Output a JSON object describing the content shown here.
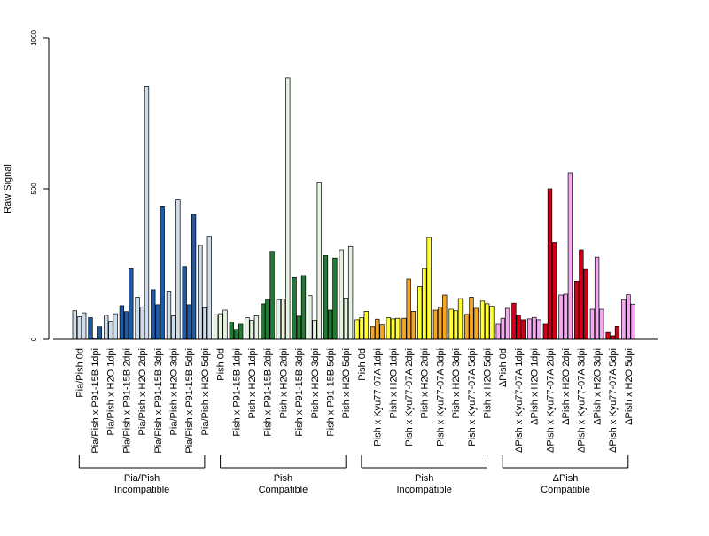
{
  "chart_data": {
    "type": "bar",
    "title": "",
    "xlabel": "",
    "ylabel": "Raw Signal",
    "ylim": [
      0,
      1000
    ],
    "yticks": [
      0,
      500,
      1000
    ],
    "grid": false,
    "legend": "none",
    "bars_per_category": 3,
    "categories": [
      {
        "label": "Pia/Pish 0d",
        "values": [
          95,
          75,
          88
        ],
        "color": "#cfdcea"
      },
      {
        "label": "Pia/Pish x P91-15B 1dpi",
        "values": [
          72,
          5,
          42
        ],
        "color": "#1f5aa6"
      },
      {
        "label": "Pia/Pish x H2O 1dpi",
        "values": [
          80,
          60,
          85
        ],
        "color": "#cfdcea"
      },
      {
        "label": "Pia/Pish x P91-15B 2dpi",
        "values": [
          112,
          92,
          235
        ],
        "color": "#1f5aa6"
      },
      {
        "label": "Pia/Pish x H2O 2dpi",
        "values": [
          140,
          108,
          840
        ],
        "color": "#cfdcea"
      },
      {
        "label": "Pia/Pish x P91-15B 3dpi",
        "values": [
          165,
          115,
          440
        ],
        "color": "#1f5aa6"
      },
      {
        "label": "Pia/Pish x H2O 3dpi",
        "values": [
          158,
          78,
          463
        ],
        "color": "#cfdcea"
      },
      {
        "label": "Pia/Pish x P91-15B 5dpi",
        "values": [
          242,
          115,
          415
        ],
        "color": "#1f5aa6"
      },
      {
        "label": "Pia/Pish x H2O 5dpi",
        "values": [
          312,
          105,
          342
        ],
        "color": "#cfdcea"
      },
      {
        "label": "Pish 0d",
        "values": [
          82,
          85,
          97
        ],
        "color": "#e6f3e1"
      },
      {
        "label": "Pish x P91-15B 1dpi",
        "values": [
          58,
          33,
          50
        ],
        "color": "#237a35"
      },
      {
        "label": "Pish x H2O 1dpi",
        "values": [
          72,
          63,
          78
        ],
        "color": "#e6f3e1"
      },
      {
        "label": "Pish x P91-15B 2dpi",
        "values": [
          118,
          133,
          292
        ],
        "color": "#237a35"
      },
      {
        "label": "Pish x H2O 2dpi",
        "values": [
          132,
          133,
          868
        ],
        "color": "#e6f3e1"
      },
      {
        "label": "Pish x P91-15B 3dpi",
        "values": [
          205,
          77,
          212
        ],
        "color": "#237a35"
      },
      {
        "label": "Pish x H2O 3dpi",
        "values": [
          145,
          63,
          522
        ],
        "color": "#e6f3e1"
      },
      {
        "label": "Pish x P91-15B 5dpi",
        "values": [
          278,
          97,
          270
        ],
        "color": "#237a35"
      },
      {
        "label": "Pish x H2O 5dpi",
        "values": [
          297,
          137,
          308
        ],
        "color": "#e6f3e1"
      },
      {
        "label": "Pish 0d",
        "values": [
          65,
          72,
          93
        ],
        "color": "#ffff33"
      },
      {
        "label": "Pish x Kyu77-07A 1dpi",
        "values": [
          42,
          67,
          48
        ],
        "color": "#f5a623"
      },
      {
        "label": "Pish x H2O 1dpi",
        "values": [
          72,
          68,
          70
        ],
        "color": "#ffff33"
      },
      {
        "label": "Pish x Kyu77-07A 2dpi",
        "values": [
          70,
          200,
          93
        ],
        "color": "#f5a623"
      },
      {
        "label": "Pish x H2O 2dpi",
        "values": [
          175,
          235,
          338
        ],
        "color": "#ffff33"
      },
      {
        "label": "Pish x Kyu77-07A 3dpi",
        "values": [
          97,
          107,
          147
        ],
        "color": "#f5a623"
      },
      {
        "label": "Pish x H2O 3dpi",
        "values": [
          100,
          95,
          135
        ],
        "color": "#ffff33"
      },
      {
        "label": "Pish x Kyu77-07A 5dpi",
        "values": [
          83,
          140,
          103
        ],
        "color": "#f5a623"
      },
      {
        "label": "Pish x H2O 5dpi",
        "values": [
          127,
          118,
          110
        ],
        "color": "#ffff33"
      },
      {
        "label": "ΔPish 0d",
        "values": [
          50,
          70,
          103
        ],
        "color": "#f3aaf0"
      },
      {
        "label": "ΔPish x Kyu77-07A 1dpi",
        "values": [
          120,
          80,
          65
        ],
        "color": "#d10018"
      },
      {
        "label": "ΔPish x H2O 1dpi",
        "values": [
          68,
          73,
          65
        ],
        "color": "#f3aaf0"
      },
      {
        "label": "ΔPish x Kyu77-07A 2dpi",
        "values": [
          50,
          500,
          322
        ],
        "color": "#d10018"
      },
      {
        "label": "ΔPish x H2O 2dpi",
        "values": [
          147,
          150,
          553
        ],
        "color": "#f3aaf0"
      },
      {
        "label": "ΔPish x Kyu77-07A 3dpi",
        "values": [
          193,
          297,
          232
        ],
        "color": "#d10018"
      },
      {
        "label": "ΔPish x H2O 3dpi",
        "values": [
          100,
          273,
          100
        ],
        "color": "#f3aaf0"
      },
      {
        "label": "ΔPish x Kyu77-07A 5dpi",
        "values": [
          23,
          12,
          43
        ],
        "color": "#d10018"
      },
      {
        "label": "ΔPish x H2O 5dpi",
        "values": [
          132,
          148,
          117
        ],
        "color": "#f3aaf0"
      }
    ],
    "groups": [
      {
        "line1": "Pia/Pish",
        "line2": "Incompatible",
        "first": 0,
        "last": 8
      },
      {
        "line1": "Pish",
        "line2": "Compatible",
        "first": 9,
        "last": 17
      },
      {
        "line1": "Pish",
        "line2": "Incompatible",
        "first": 18,
        "last": 26
      },
      {
        "line1": "ΔPish",
        "line2": "Compatible",
        "first": 27,
        "last": 35
      }
    ]
  }
}
